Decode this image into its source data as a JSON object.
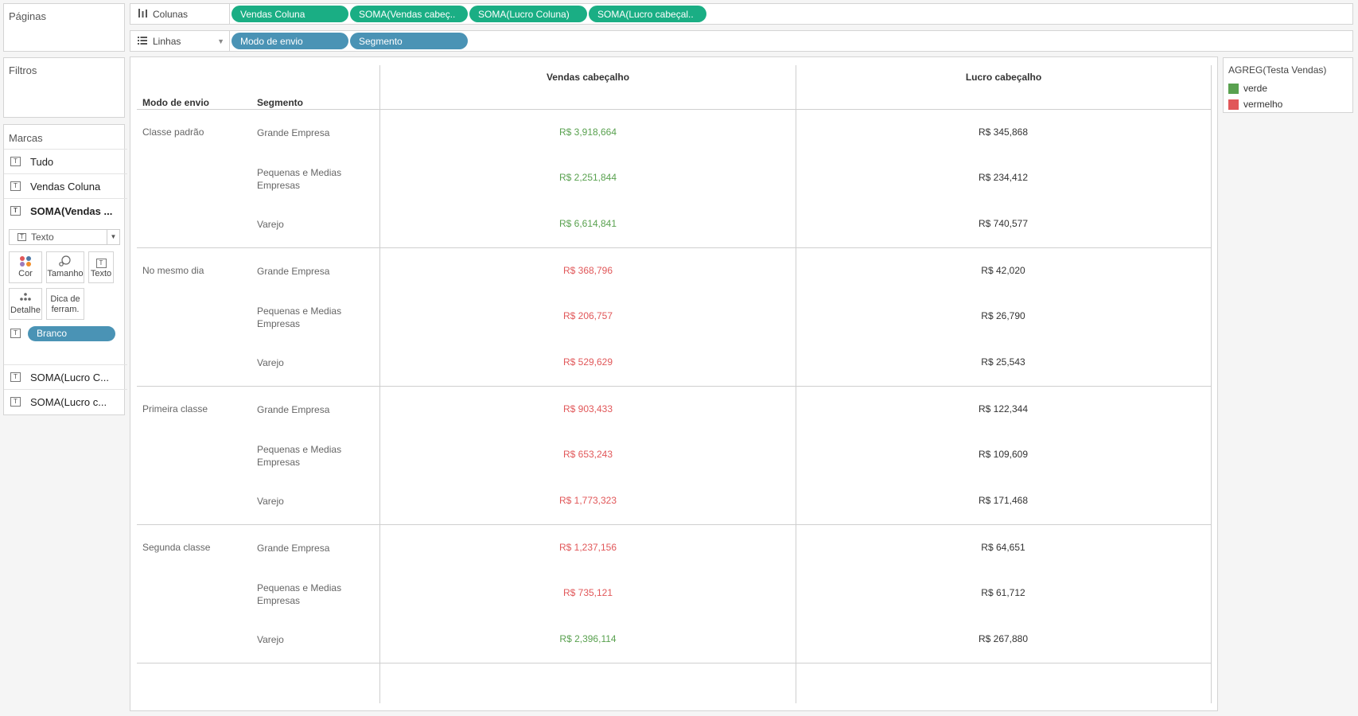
{
  "sidebar": {
    "pages_title": "Páginas",
    "filters_title": "Filtros",
    "marks": {
      "title": "Marcas",
      "items": [
        "Tudo",
        "Vendas Coluna",
        "SOMA(Vendas ..."
      ],
      "mark_type": "Texto",
      "buttons": {
        "color": "Cor",
        "size": "Tamanho",
        "text": "Texto",
        "detail": "Detalhe",
        "tooltip_line1": "Dica de",
        "tooltip_line2": "ferram."
      },
      "field_pill": "Branco",
      "other_items": [
        "SOMA(Lucro C...",
        "SOMA(Lucro c..."
      ],
      "tbox_glyph": "T"
    }
  },
  "shelves": {
    "columns": {
      "label": "Colunas",
      "pills": [
        "Vendas Coluna",
        "SOMA(Vendas cabeç..",
        "SOMA(Lucro Coluna)",
        "SOMA(Lucro cabeçal.."
      ]
    },
    "rows": {
      "label": "Linhas",
      "pills": [
        "Modo de envio",
        "Segmento"
      ]
    }
  },
  "table": {
    "row_headers": [
      "Modo de envio",
      "Segmento"
    ],
    "column_headers": [
      "Vendas cabeçalho",
      "Lucro cabeçalho"
    ],
    "groups": [
      {
        "mode": "Classe padrão",
        "rows": [
          {
            "segment": "Grande Empresa",
            "sales": "R$ 3,918,664",
            "status": "verde",
            "profit": "R$ 345,868"
          },
          {
            "segment": "Pequenas e Medias Empresas",
            "sales": "R$ 2,251,844",
            "status": "verde",
            "profit": "R$ 234,412"
          },
          {
            "segment": "Varejo",
            "sales": "R$ 6,614,841",
            "status": "verde",
            "profit": "R$ 740,577"
          }
        ]
      },
      {
        "mode": "No mesmo dia",
        "rows": [
          {
            "segment": "Grande Empresa",
            "sales": "R$ 368,796",
            "status": "vermelho",
            "profit": "R$ 42,020"
          },
          {
            "segment": "Pequenas e Medias Empresas",
            "sales": "R$ 206,757",
            "status": "vermelho",
            "profit": "R$ 26,790"
          },
          {
            "segment": "Varejo",
            "sales": "R$ 529,629",
            "status": "vermelho",
            "profit": "R$ 25,543"
          }
        ]
      },
      {
        "mode": "Primeira classe",
        "rows": [
          {
            "segment": "Grande Empresa",
            "sales": "R$ 903,433",
            "status": "vermelho",
            "profit": "R$ 122,344"
          },
          {
            "segment": "Pequenas e Medias Empresas",
            "sales": "R$ 653,243",
            "status": "vermelho",
            "profit": "R$ 109,609"
          },
          {
            "segment": "Varejo",
            "sales": "R$ 1,773,323",
            "status": "vermelho",
            "profit": "R$ 171,468"
          }
        ]
      },
      {
        "mode": "Segunda classe",
        "rows": [
          {
            "segment": "Grande Empresa",
            "sales": "R$ 1,237,156",
            "status": "vermelho",
            "profit": "R$ 64,651"
          },
          {
            "segment": "Pequenas e Medias Empresas",
            "sales": "R$ 735,121",
            "status": "vermelho",
            "profit": "R$ 61,712"
          },
          {
            "segment": "Varejo",
            "sales": "R$ 2,396,114",
            "status": "verde",
            "profit": "R$ 267,880"
          }
        ]
      }
    ]
  },
  "legend": {
    "title": "AGREG(Testa Vendas)",
    "items": [
      {
        "label": "verde",
        "color": "#59a14f"
      },
      {
        "label": "vermelho",
        "color": "#e15759"
      }
    ]
  },
  "colors": {
    "verde_text": "#59a14f",
    "vermelho_text": "#e15759",
    "pill_green": "#1aae84",
    "pill_blue": "#4a93b5"
  }
}
